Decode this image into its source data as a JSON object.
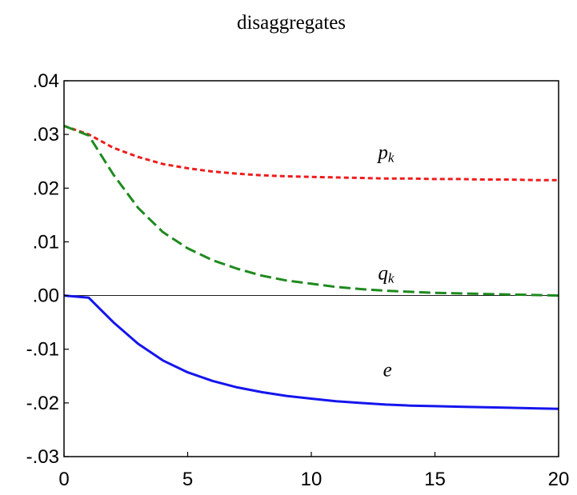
{
  "chart_data": {
    "type": "line",
    "title": "disaggregates",
    "xlabel": "",
    "ylabel": "",
    "xlim": [
      0,
      20
    ],
    "ylim": [
      -0.03,
      0.04
    ],
    "x_ticks": [
      0,
      5,
      10,
      15,
      20
    ],
    "x_tick_labels": [
      "0",
      "5",
      "10",
      "15",
      "20"
    ],
    "y_ticks": [
      0.04,
      0.03,
      0.02,
      0.01,
      0.0,
      -0.01,
      -0.02,
      -0.03
    ],
    "y_tick_labels": [
      ".04",
      ".03",
      ".02",
      ".01",
      ".00",
      "-.01",
      "-.02",
      "-.03"
    ],
    "grid": false,
    "zero_line": true,
    "x": [
      0,
      1,
      2,
      3,
      4,
      5,
      6,
      7,
      8,
      9,
      10,
      11,
      12,
      13,
      14,
      15,
      16,
      17,
      18,
      19,
      20
    ],
    "series": [
      {
        "label": "pk",
        "label_main": "p",
        "label_sub": "k",
        "color": "#ee1c1c",
        "style": "dotted",
        "label_pos": [
          12.7,
          0.0255
        ],
        "values": [
          0.0316,
          0.03,
          0.0275,
          0.0258,
          0.0245,
          0.0237,
          0.0231,
          0.0227,
          0.0224,
          0.0222,
          0.0221,
          0.022,
          0.0219,
          0.0218,
          0.0218,
          0.0217,
          0.0217,
          0.0216,
          0.0216,
          0.0215,
          0.0215
        ]
      },
      {
        "label": "qk",
        "label_main": "q",
        "label_sub": "k",
        "color": "#1e8a1e",
        "style": "dashed",
        "label_pos": [
          12.7,
          0.003
        ],
        "values": [
          0.0316,
          0.0298,
          0.0225,
          0.0163,
          0.0118,
          0.0088,
          0.0066,
          0.005,
          0.0037,
          0.0028,
          0.0022,
          0.0016,
          0.0012,
          0.0009,
          0.0007,
          0.0005,
          0.0004,
          0.0003,
          0.0002,
          0.0001,
          0.0
        ]
      },
      {
        "label": "e",
        "label_main": "e",
        "label_sub": "",
        "color": "#1515ee",
        "style": "solid",
        "label_pos": [
          12.9,
          -0.015
        ],
        "values": [
          0.0,
          -0.0004,
          -0.005,
          -0.009,
          -0.0121,
          -0.0143,
          -0.0159,
          -0.0171,
          -0.018,
          -0.0187,
          -0.0192,
          -0.0197,
          -0.02,
          -0.0203,
          -0.0205,
          -0.0206,
          -0.0207,
          -0.0208,
          -0.0209,
          -0.021,
          -0.0211
        ]
      }
    ]
  }
}
